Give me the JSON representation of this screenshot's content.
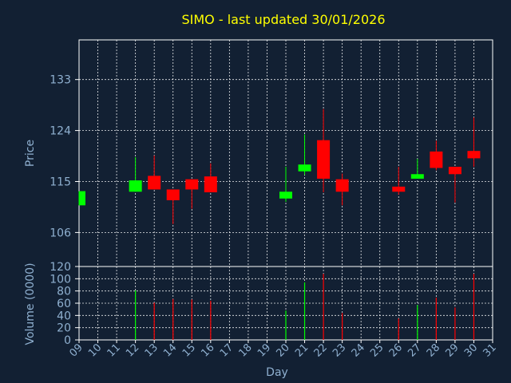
{
  "chart_data": [
    {
      "type": "candlestick",
      "title": "SIMO - last updated 30/01/2026",
      "ylabel": "Price",
      "ylim": [
        100,
        140
      ],
      "yticks": [
        106,
        115,
        124,
        133
      ],
      "grid": true,
      "colors": {
        "up": "#00ff00",
        "down": "#ff0000"
      },
      "candles": [
        {
          "day": "09",
          "open": 110.8,
          "close": 113.3,
          "high": 113.3,
          "low": 110.8
        },
        {
          "day": "12",
          "open": 113.2,
          "close": 115.2,
          "high": 119.3,
          "low": 113.2
        },
        {
          "day": "13",
          "open": 116.0,
          "close": 113.6,
          "high": 119.6,
          "low": 113.6
        },
        {
          "day": "14",
          "open": 113.6,
          "close": 111.7,
          "high": 113.6,
          "low": 107.5
        },
        {
          "day": "15",
          "open": 115.4,
          "close": 113.6,
          "high": 115.4,
          "low": 110.2
        },
        {
          "day": "16",
          "open": 115.9,
          "close": 113.1,
          "high": 118.2,
          "low": 113.1
        },
        {
          "day": "20",
          "open": 112.0,
          "close": 113.2,
          "high": 117.6,
          "low": 111.4
        },
        {
          "day": "21",
          "open": 116.8,
          "close": 118.0,
          "high": 123.3,
          "low": 116.2
        },
        {
          "day": "22",
          "open": 122.3,
          "close": 115.5,
          "high": 127.8,
          "low": 113.1
        },
        {
          "day": "23",
          "open": 115.4,
          "close": 113.2,
          "high": 116.4,
          "low": 110.8
        },
        {
          "day": "26",
          "open": 114.1,
          "close": 113.2,
          "high": 117.6,
          "low": 112.7
        },
        {
          "day": "27",
          "open": 115.5,
          "close": 116.3,
          "high": 119.0,
          "low": 115.5
        },
        {
          "day": "28",
          "open": 120.3,
          "close": 117.4,
          "high": 122.2,
          "low": 117.0
        },
        {
          "day": "29",
          "open": 117.6,
          "close": 116.3,
          "high": 117.6,
          "low": 111.3
        },
        {
          "day": "30",
          "open": 120.4,
          "close": 119.1,
          "high": 126.3,
          "low": 117.6
        }
      ]
    },
    {
      "type": "bar",
      "xlabel": "Day",
      "ylabel": "Volume (0000)",
      "ylim": [
        0,
        120
      ],
      "yticks": [
        0,
        20,
        40,
        60,
        80,
        100,
        120
      ],
      "categories": [
        "09",
        "10",
        "11",
        "12",
        "13",
        "14",
        "15",
        "16",
        "17",
        "18",
        "19",
        "20",
        "21",
        "22",
        "23",
        "24",
        "25",
        "26",
        "27",
        "28",
        "29",
        "30",
        "31"
      ],
      "values": [
        {
          "day": "12",
          "value": 81,
          "color": "#00ff00"
        },
        {
          "day": "13",
          "value": 61,
          "color": "#ff0000"
        },
        {
          "day": "14",
          "value": 67,
          "color": "#ff0000"
        },
        {
          "day": "15",
          "value": 66,
          "color": "#ff0000"
        },
        {
          "day": "16",
          "value": 64,
          "color": "#ff0000"
        },
        {
          "day": "20",
          "value": 48,
          "color": "#00ff00"
        },
        {
          "day": "21",
          "value": 94,
          "color": "#00ff00"
        },
        {
          "day": "22",
          "value": 108,
          "color": "#ff0000"
        },
        {
          "day": "23",
          "value": 44,
          "color": "#ff0000"
        },
        {
          "day": "26",
          "value": 35,
          "color": "#ff0000"
        },
        {
          "day": "27",
          "value": 57,
          "color": "#00ff00"
        },
        {
          "day": "28",
          "value": 69,
          "color": "#ff0000"
        },
        {
          "day": "29",
          "value": 53,
          "color": "#ff0000"
        },
        {
          "day": "30",
          "value": 108,
          "color": "#ff0000"
        }
      ]
    }
  ]
}
